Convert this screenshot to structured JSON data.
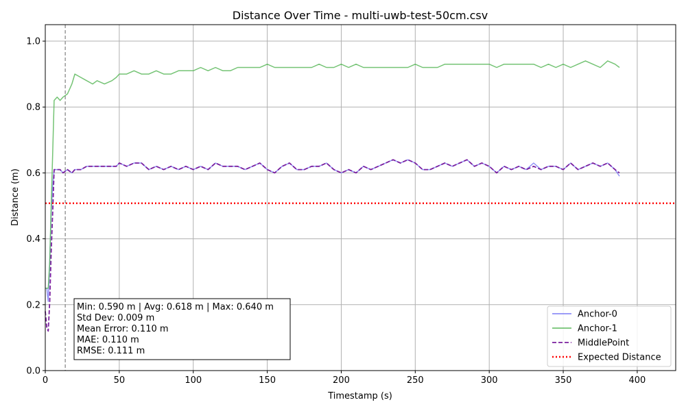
{
  "chart_data": {
    "type": "line",
    "title": "Distance Over Time - multi-uwb-test-50cm.csv",
    "xlabel": "Timestamp (s)",
    "ylabel": "Distance (m)",
    "xlim": [
      0,
      426
    ],
    "ylim": [
      0,
      1.05
    ],
    "x_ticks": [
      0,
      50,
      100,
      150,
      200,
      250,
      300,
      350,
      400
    ],
    "y_ticks": [
      0.0,
      0.2,
      0.4,
      0.6,
      0.8,
      1.0
    ],
    "x_tick_labels": [
      "0",
      "50",
      "100",
      "150",
      "200",
      "250",
      "300",
      "350",
      "400"
    ],
    "y_tick_labels": [
      "0.0",
      "0.2",
      "0.4",
      "0.6",
      "0.8",
      "1.0"
    ],
    "grid": true,
    "legend_position": "lower-right",
    "series": [
      {
        "name": "Anchor-0",
        "color": "#7b7bf5",
        "style": "solid",
        "x": [
          0,
          1,
          2,
          3,
          4,
          5,
          6,
          8,
          10,
          12,
          15,
          18,
          20,
          24,
          28,
          32,
          35,
          40,
          45,
          48,
          50,
          55,
          60,
          65,
          70,
          75,
          80,
          85,
          90,
          95,
          100,
          105,
          110,
          115,
          120,
          125,
          130,
          135,
          140,
          145,
          150,
          155,
          160,
          165,
          170,
          175,
          180,
          185,
          190,
          195,
          200,
          205,
          210,
          215,
          220,
          225,
          230,
          235,
          240,
          245,
          250,
          255,
          260,
          265,
          270,
          275,
          280,
          285,
          290,
          295,
          300,
          305,
          310,
          315,
          320,
          325,
          330,
          335,
          340,
          345,
          350,
          355,
          360,
          365,
          370,
          375,
          380,
          385,
          388
        ],
        "y": [
          0.25,
          0.25,
          0.21,
          0.33,
          0.48,
          0.56,
          0.61,
          0.61,
          0.61,
          0.6,
          0.61,
          0.6,
          0.61,
          0.61,
          0.62,
          0.62,
          0.62,
          0.62,
          0.62,
          0.62,
          0.63,
          0.62,
          0.63,
          0.63,
          0.61,
          0.62,
          0.61,
          0.62,
          0.61,
          0.62,
          0.61,
          0.62,
          0.61,
          0.63,
          0.62,
          0.62,
          0.62,
          0.61,
          0.62,
          0.63,
          0.61,
          0.6,
          0.62,
          0.63,
          0.61,
          0.61,
          0.62,
          0.62,
          0.63,
          0.61,
          0.6,
          0.61,
          0.6,
          0.62,
          0.61,
          0.62,
          0.63,
          0.64,
          0.63,
          0.64,
          0.63,
          0.61,
          0.61,
          0.62,
          0.63,
          0.62,
          0.63,
          0.64,
          0.62,
          0.63,
          0.62,
          0.6,
          0.62,
          0.61,
          0.62,
          0.61,
          0.63,
          0.61,
          0.62,
          0.62,
          0.61,
          0.63,
          0.61,
          0.62,
          0.63,
          0.62,
          0.63,
          0.61,
          0.59
        ]
      },
      {
        "name": "Anchor-1",
        "color": "#5cb85c",
        "style": "solid",
        "x": [
          0,
          1,
          2,
          3,
          4,
          5,
          6,
          8,
          10,
          12,
          15,
          18,
          20,
          24,
          28,
          32,
          35,
          40,
          45,
          48,
          50,
          55,
          60,
          65,
          70,
          75,
          80,
          85,
          90,
          95,
          100,
          105,
          110,
          115,
          120,
          125,
          130,
          135,
          140,
          145,
          150,
          155,
          160,
          165,
          170,
          175,
          180,
          185,
          190,
          195,
          200,
          205,
          210,
          215,
          220,
          225,
          230,
          235,
          240,
          245,
          250,
          255,
          260,
          265,
          270,
          275,
          280,
          285,
          290,
          295,
          300,
          305,
          310,
          315,
          320,
          325,
          330,
          335,
          340,
          345,
          350,
          355,
          360,
          365,
          370,
          375,
          380,
          385,
          388
        ],
        "y": [
          0.25,
          0.25,
          0.25,
          0.33,
          0.5,
          0.66,
          0.82,
          0.83,
          0.82,
          0.83,
          0.84,
          0.87,
          0.9,
          0.89,
          0.88,
          0.87,
          0.88,
          0.87,
          0.88,
          0.89,
          0.9,
          0.9,
          0.91,
          0.9,
          0.9,
          0.91,
          0.9,
          0.9,
          0.91,
          0.91,
          0.91,
          0.92,
          0.91,
          0.92,
          0.91,
          0.91,
          0.92,
          0.92,
          0.92,
          0.92,
          0.93,
          0.92,
          0.92,
          0.92,
          0.92,
          0.92,
          0.92,
          0.93,
          0.92,
          0.92,
          0.93,
          0.92,
          0.93,
          0.92,
          0.92,
          0.92,
          0.92,
          0.92,
          0.92,
          0.92,
          0.93,
          0.92,
          0.92,
          0.92,
          0.93,
          0.93,
          0.93,
          0.93,
          0.93,
          0.93,
          0.93,
          0.92,
          0.93,
          0.93,
          0.93,
          0.93,
          0.93,
          0.92,
          0.93,
          0.92,
          0.93,
          0.92,
          0.93,
          0.94,
          0.93,
          0.92,
          0.94,
          0.93,
          0.92
        ]
      },
      {
        "name": "MiddlePoint",
        "color": "#7a1f9e",
        "style": "dashed",
        "x": [
          0,
          1,
          2,
          3,
          4,
          5,
          6,
          8,
          10,
          12,
          15,
          18,
          20,
          24,
          28,
          32,
          35,
          40,
          45,
          48,
          50,
          55,
          60,
          65,
          70,
          75,
          80,
          85,
          90,
          95,
          100,
          105,
          110,
          115,
          120,
          125,
          130,
          135,
          140,
          145,
          150,
          155,
          160,
          165,
          170,
          175,
          180,
          185,
          190,
          195,
          200,
          205,
          210,
          215,
          220,
          225,
          230,
          235,
          240,
          245,
          250,
          255,
          260,
          265,
          270,
          275,
          280,
          285,
          290,
          295,
          300,
          305,
          310,
          315,
          320,
          325,
          330,
          335,
          340,
          345,
          350,
          355,
          360,
          365,
          370,
          375,
          380,
          385,
          388
        ],
        "y": [
          0.18,
          0.13,
          0.12,
          0.21,
          0.36,
          0.48,
          0.61,
          0.61,
          0.61,
          0.6,
          0.61,
          0.6,
          0.61,
          0.61,
          0.62,
          0.62,
          0.62,
          0.62,
          0.62,
          0.62,
          0.63,
          0.62,
          0.63,
          0.63,
          0.61,
          0.62,
          0.61,
          0.62,
          0.61,
          0.62,
          0.61,
          0.62,
          0.61,
          0.63,
          0.62,
          0.62,
          0.62,
          0.61,
          0.62,
          0.63,
          0.61,
          0.6,
          0.62,
          0.63,
          0.61,
          0.61,
          0.62,
          0.62,
          0.63,
          0.61,
          0.6,
          0.61,
          0.6,
          0.62,
          0.61,
          0.62,
          0.63,
          0.64,
          0.63,
          0.64,
          0.63,
          0.61,
          0.61,
          0.62,
          0.63,
          0.62,
          0.63,
          0.64,
          0.62,
          0.63,
          0.62,
          0.6,
          0.62,
          0.61,
          0.62,
          0.61,
          0.62,
          0.61,
          0.62,
          0.62,
          0.61,
          0.63,
          0.61,
          0.62,
          0.63,
          0.62,
          0.63,
          0.61,
          0.6
        ]
      },
      {
        "name": "Expected Distance",
        "color": "#ff0000",
        "style": "dotted",
        "x": [
          0,
          426
        ],
        "y": [
          0.508,
          0.508
        ]
      }
    ],
    "vertical_marker": {
      "x": 13.5,
      "color": "#808080",
      "style": "dashed"
    },
    "stats_box": [
      "Min: 0.590 m | Avg: 0.618 m | Max: 0.640 m",
      "Std Dev: 0.009 m",
      "Mean Error: 0.110 m",
      "MAE: 0.110 m",
      "RMSE: 0.111 m"
    ]
  }
}
